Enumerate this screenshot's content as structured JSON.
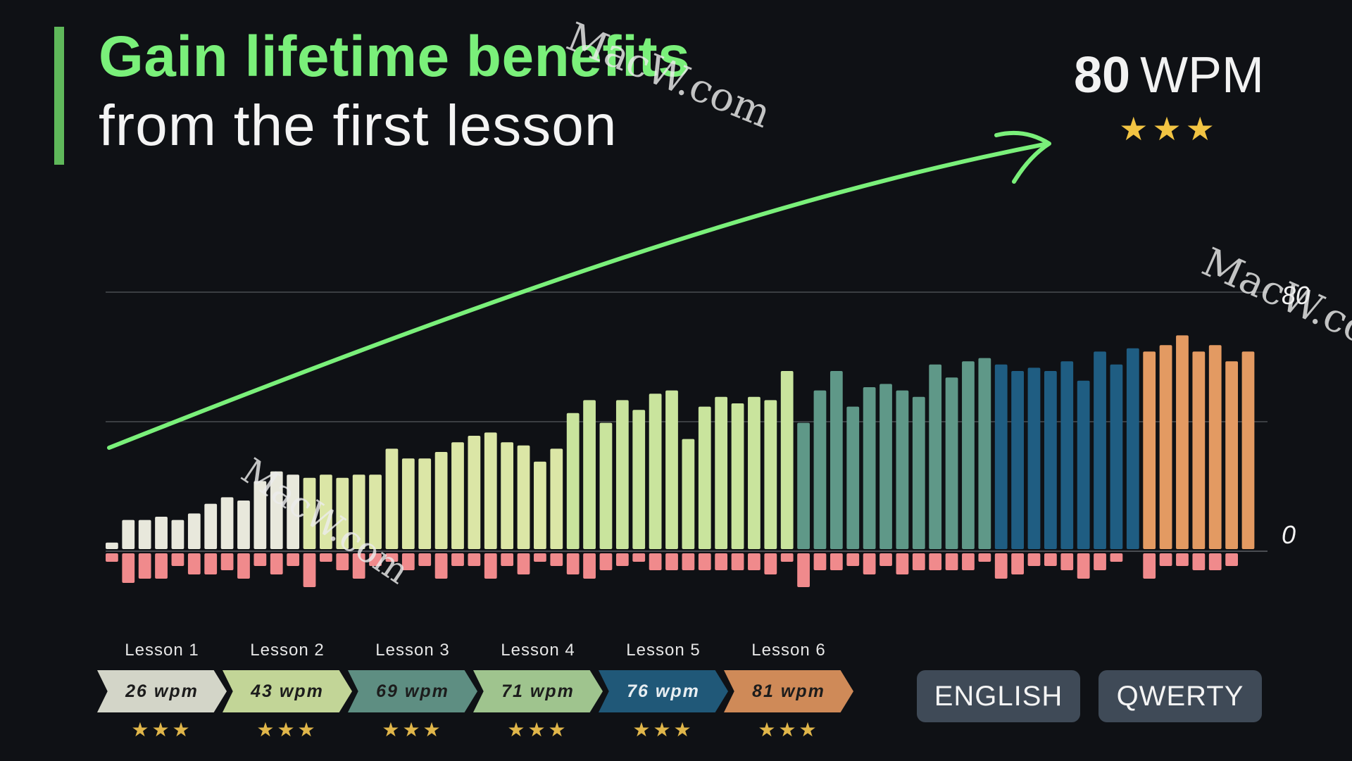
{
  "headline": {
    "line1": "Gain lifetime benefits",
    "line2": "from the first lesson",
    "accent_color": "#7af07a"
  },
  "target": {
    "value": "80",
    "unit": "WPM",
    "stars": "★★★",
    "star_color": "#f2c443"
  },
  "chart_data": {
    "type": "bar",
    "title": "",
    "xlabel": "",
    "ylabel": "",
    "ylim": [
      0,
      80
    ],
    "yticks": [
      0,
      80
    ],
    "tick_labels": {
      "zero": "0",
      "top": "80"
    },
    "grid": true,
    "trend": "rising arrow",
    "series": [
      {
        "lesson": "Lesson 1",
        "color": "#e8e8dc",
        "values": [
          2,
          9,
          9,
          10,
          9,
          11,
          14,
          16,
          15,
          21,
          24,
          23
        ],
        "errors": [
          2,
          7,
          6,
          6,
          3,
          5,
          5,
          4,
          6,
          3,
          5,
          3
        ]
      },
      {
        "lesson": "Lesson 2",
        "color": "#dbe6a6",
        "values": [
          22,
          23,
          22,
          23,
          23,
          31,
          28,
          28,
          30,
          33,
          35,
          36,
          33,
          32,
          27,
          31
        ],
        "errors": [
          8,
          2,
          4,
          6,
          3,
          2,
          4,
          3,
          6,
          3,
          3,
          6,
          3,
          5,
          2,
          3
        ]
      },
      {
        "lesson": "Lesson 3",
        "color": "#c9e49d",
        "values": [
          42,
          46,
          39,
          46,
          43,
          48,
          49,
          34,
          44,
          47,
          45,
          47,
          46,
          55
        ],
        "errors": [
          5,
          6,
          4,
          3,
          2,
          4,
          4,
          4,
          4,
          4,
          4,
          4,
          5,
          2
        ]
      },
      {
        "lesson": "Lesson 4",
        "color": "#5f9888",
        "values": [
          39,
          49,
          55,
          44,
          50,
          51,
          49,
          47,
          57,
          53,
          58,
          59
        ],
        "errors": [
          8,
          4,
          4,
          3,
          5,
          3,
          5,
          4,
          4,
          4,
          4,
          2
        ]
      },
      {
        "lesson": "Lesson 5",
        "color": "#1f5d82",
        "values": [
          57,
          55,
          56,
          55,
          58,
          52,
          61,
          57,
          62
        ],
        "errors": [
          6,
          5,
          3,
          3,
          4,
          6,
          4,
          2,
          0
        ]
      },
      {
        "lesson": "Lesson 6",
        "color": "#e39a62",
        "values": [
          61,
          63,
          66,
          61,
          63,
          58,
          61
        ],
        "errors": [
          6,
          3,
          3,
          4,
          4,
          3,
          0
        ]
      }
    ]
  },
  "stages": [
    {
      "label": "Lesson 1",
      "wpm": "26 wpm",
      "stars": "★★★",
      "color": "#d3d5c8",
      "text_color": "#1c1c1c"
    },
    {
      "label": "Lesson 2",
      "wpm": "43 wpm",
      "stars": "★★★",
      "color": "#c2d597",
      "text_color": "#1c1c1c"
    },
    {
      "label": "Lesson 3",
      "wpm": "69 wpm",
      "stars": "★★★",
      "color": "#5e8e82",
      "text_color": "#1c1c1c"
    },
    {
      "label": "Lesson 4",
      "wpm": "71 wpm",
      "stars": "★★★",
      "color": "#9fc48e",
      "text_color": "#1c1c1c"
    },
    {
      "label": "Lesson 5",
      "wpm": "76 wpm",
      "stars": "★★★",
      "color": "#205878",
      "text_color": "#e8eef2"
    },
    {
      "label": "Lesson 6",
      "wpm": "81 wpm",
      "stars": "★★★",
      "color": "#cf8a58",
      "text_color": "#1c1c1c"
    }
  ],
  "buttons": {
    "language": "ENGLISH",
    "layout": "QWERTY"
  },
  "watermark": "MacW.com",
  "colors": {
    "background": "#0f1115",
    "error_bars": "#f08a8c",
    "arrow": "#7af07a",
    "grid": "#4a4d52"
  }
}
